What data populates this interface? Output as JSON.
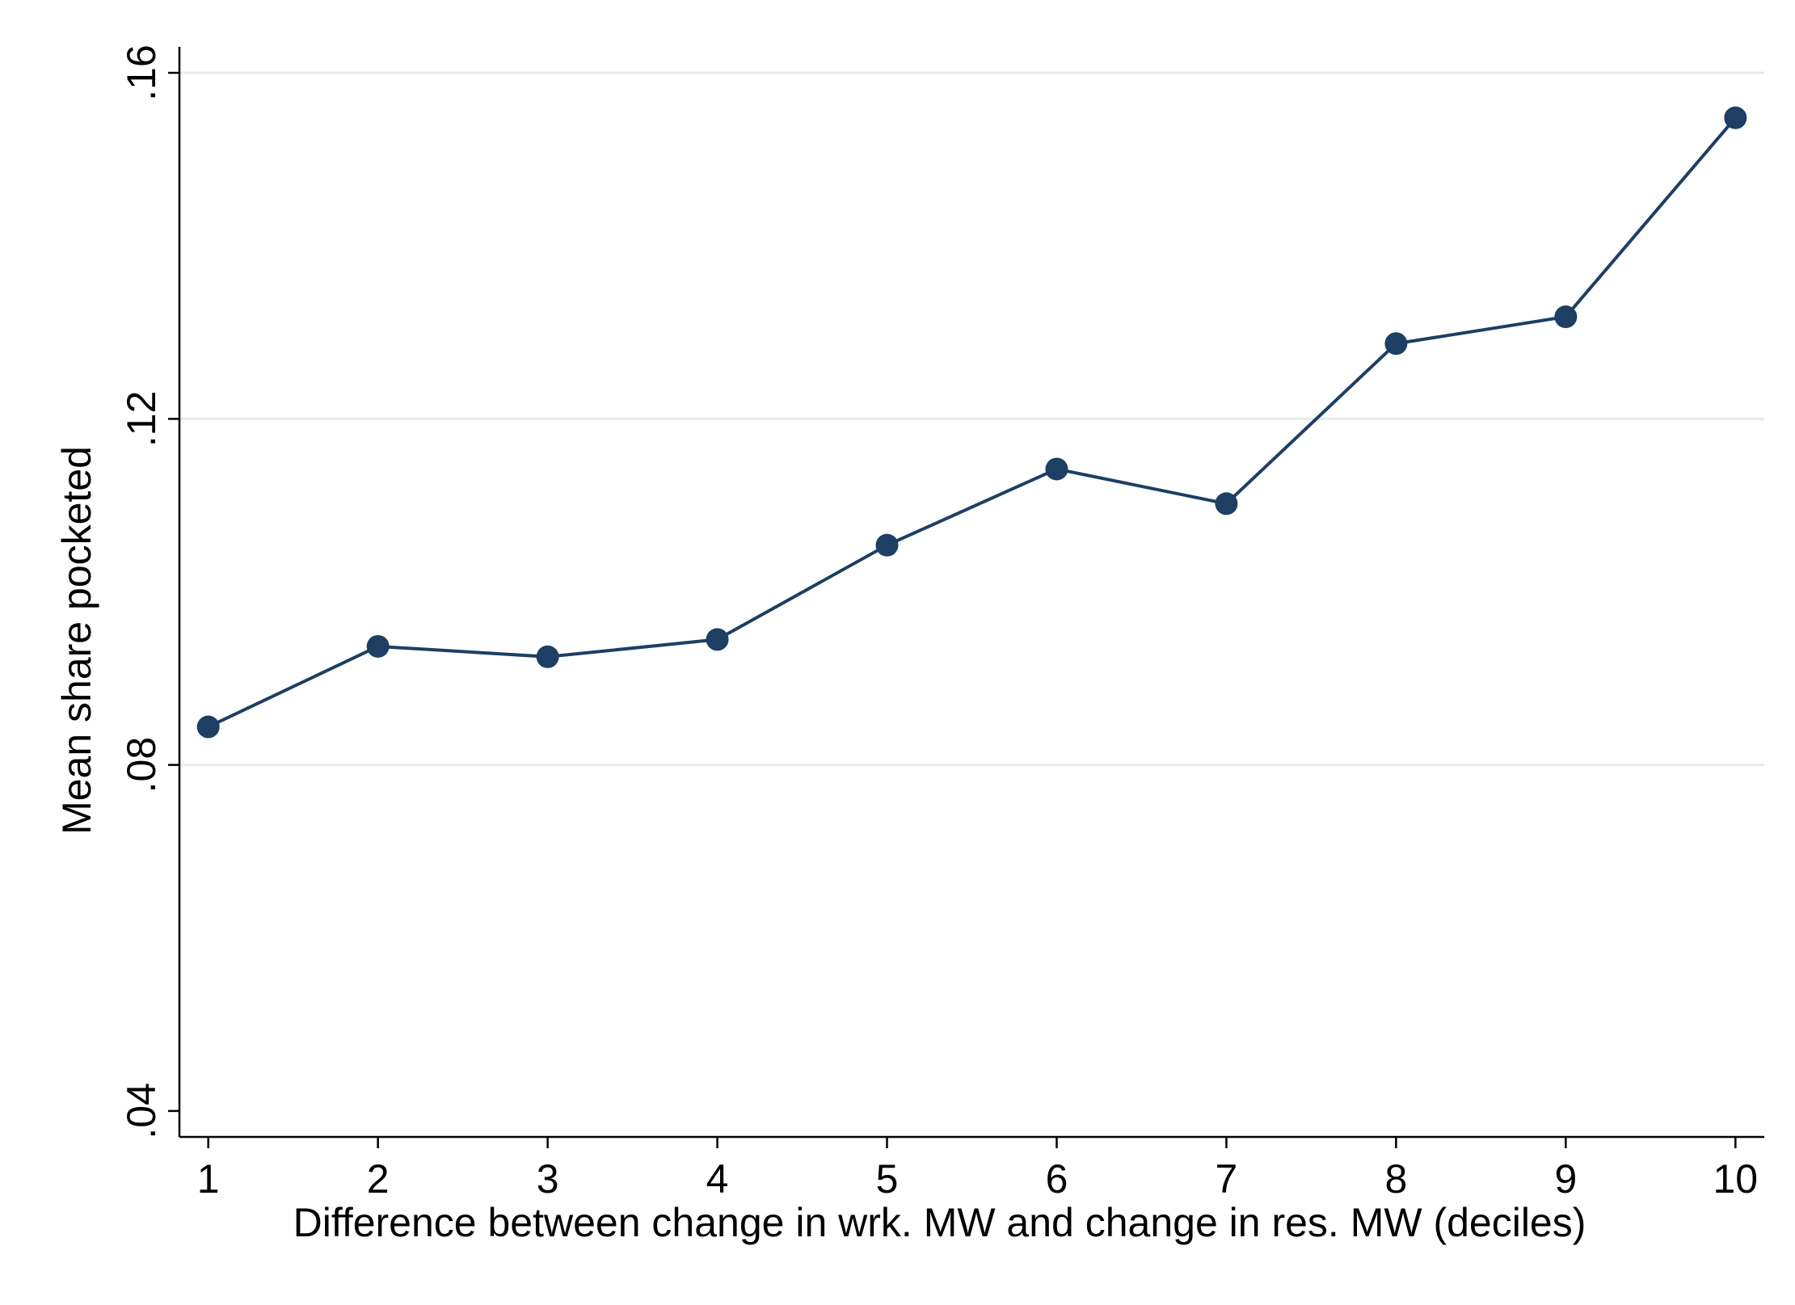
{
  "chart_data": {
    "type": "line",
    "title": "",
    "xlabel": "Difference between change in wrk. MW and change in res. MW (deciles)",
    "ylabel": "Mean share pocketed",
    "x": [
      1,
      2,
      3,
      4,
      5,
      6,
      7,
      8,
      9,
      10
    ],
    "x_tick_labels": [
      "1",
      "2",
      "3",
      "4",
      "5",
      "6",
      "7",
      "8",
      "9",
      "10"
    ],
    "y_ticks": [
      0.04,
      0.08,
      0.12,
      0.16
    ],
    "y_tick_labels": [
      ".04",
      ".08",
      ".12",
      ".16"
    ],
    "xlim": [
      0.83,
      10.17
    ],
    "ylim": [
      0.037,
      0.163
    ],
    "grid": "horizontal",
    "series": [
      {
        "values": [
          0.0844,
          0.0937,
          0.0925,
          0.0945,
          0.1054,
          0.1142,
          0.1102,
          0.1287,
          0.1318,
          0.1548
        ],
        "color": "#1c3f63"
      }
    ]
  }
}
